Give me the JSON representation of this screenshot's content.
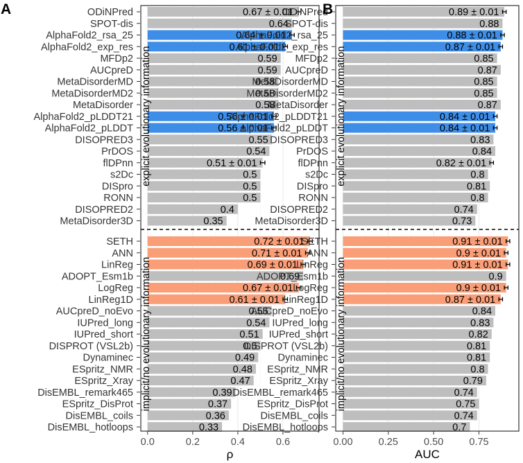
{
  "chart_data": [
    {
      "type": "bar",
      "orientation": "horizontal",
      "panel_label": "A",
      "xlabel": "ρ",
      "xlim": [
        -0.03,
        0.76
      ],
      "xticks": [
        0.0,
        0.2,
        0.4,
        0.6
      ],
      "xtick_labels": [
        "0.0",
        "0.2",
        "0.4",
        "0.6"
      ],
      "grid": true,
      "groups": [
        {
          "label": "explicit evolutionary information",
          "rows": [
            {
              "name": "ODiNPred",
              "value": 0.67,
              "err": 0.01,
              "label": "0.67 ± 0.01",
              "color": "#BEBEBE"
            },
            {
              "name": "SPOT-dis",
              "value": 0.64,
              "err": null,
              "label": "0.64",
              "color": "#BEBEBE"
            },
            {
              "name": "AlphaFold2_rsa_25",
              "value": 0.64,
              "err": 0.01,
              "label": "0.64 ± 0.01",
              "color": "#3E8EE8"
            },
            {
              "name": "AlphaFold2_exp_res",
              "value": 0.61,
              "err": 0.01,
              "label": "0.61 ± 0.01",
              "color": "#3E8EE8"
            },
            {
              "name": "MFDp2",
              "value": 0.59,
              "err": null,
              "label": "0.59",
              "color": "#BEBEBE"
            },
            {
              "name": "AUCpreD",
              "value": 0.59,
              "err": null,
              "label": "0.59",
              "color": "#BEBEBE"
            },
            {
              "name": "MetaDisorderMD",
              "value": 0.58,
              "err": null,
              "label": "0.58",
              "color": "#BEBEBE"
            },
            {
              "name": "MetaDisorderMD2",
              "value": 0.58,
              "err": null,
              "label": "0.58",
              "color": "#BEBEBE"
            },
            {
              "name": "MetaDisorder",
              "value": 0.58,
              "err": null,
              "label": "0.58",
              "color": "#BEBEBE"
            },
            {
              "name": "AlphaFold2_pLDDT21",
              "value": 0.56,
              "err": 0.01,
              "label": "0.56 ± 0.01",
              "color": "#3E8EE8"
            },
            {
              "name": "AlphaFold2_pLDDT",
              "value": 0.56,
              "err": 0.01,
              "label": "0.56 ± 0.01",
              "color": "#3E8EE8"
            },
            {
              "name": "DISOPRED3",
              "value": 0.55,
              "err": null,
              "label": "0.55",
              "color": "#BEBEBE"
            },
            {
              "name": "PrDOS",
              "value": 0.54,
              "err": null,
              "label": "0.54",
              "color": "#BEBEBE"
            },
            {
              "name": "flDPnn",
              "value": 0.51,
              "err": 0.01,
              "label": "0.51 ± 0.01",
              "color": "#BEBEBE"
            },
            {
              "name": "s2Dc",
              "value": 0.5,
              "err": null,
              "label": "0.5",
              "color": "#BEBEBE"
            },
            {
              "name": "DISpro",
              "value": 0.5,
              "err": null,
              "label": "0.5",
              "color": "#BEBEBE"
            },
            {
              "name": "RONN",
              "value": 0.5,
              "err": null,
              "label": "0.5",
              "color": "#BEBEBE"
            },
            {
              "name": "DISOPRED2",
              "value": 0.4,
              "err": null,
              "label": "0.4",
              "color": "#BEBEBE"
            },
            {
              "name": "MetaDisorder3D",
              "value": 0.35,
              "err": null,
              "label": "0.35",
              "color": "#BEBEBE"
            }
          ]
        },
        {
          "label": "implicit/no evolutionary information",
          "rows": [
            {
              "name": "SETH",
              "value": 0.72,
              "err": 0.01,
              "label": "0.72 ± 0.01",
              "color": "#FA9E78"
            },
            {
              "name": "ANN",
              "value": 0.71,
              "err": 0.01,
              "label": "0.71 ± 0.01",
              "color": "#FA9E78"
            },
            {
              "name": "LinReg",
              "value": 0.69,
              "err": 0.01,
              "label": "0.69 ± 0.01",
              "color": "#FA9E78"
            },
            {
              "name": "ADOPT_Esm1b",
              "value": 0.69,
              "err": null,
              "label": "0.69",
              "color": "#BEBEBE"
            },
            {
              "name": "LogReg",
              "value": 0.67,
              "err": 0.01,
              "label": "0.67 ± 0.01",
              "color": "#FA9E78"
            },
            {
              "name": "LinReg1D",
              "value": 0.61,
              "err": 0.01,
              "label": "0.61 ± 0.01",
              "color": "#FA9E78"
            },
            {
              "name": "AUCpreD_noEvo",
              "value": 0.55,
              "err": null,
              "label": "0.55",
              "color": "#BEBEBE"
            },
            {
              "name": "IUPred_long",
              "value": 0.54,
              "err": null,
              "label": "0.54",
              "color": "#BEBEBE"
            },
            {
              "name": "IUPred_short",
              "value": 0.51,
              "err": null,
              "label": "0.51",
              "color": "#BEBEBE"
            },
            {
              "name": "DISPROT (VSL2b)",
              "value": 0.5,
              "err": null,
              "label": "0.5",
              "color": "#BEBEBE"
            },
            {
              "name": "Dynaminec",
              "value": 0.49,
              "err": null,
              "label": "0.49",
              "color": "#BEBEBE"
            },
            {
              "name": "ESpritz_NMR",
              "value": 0.48,
              "err": null,
              "label": "0.48",
              "color": "#BEBEBE"
            },
            {
              "name": "ESpritz_Xray",
              "value": 0.47,
              "err": null,
              "label": "0.47",
              "color": "#BEBEBE"
            },
            {
              "name": "DisEMBL_remark465",
              "value": 0.39,
              "err": null,
              "label": "0.39",
              "color": "#BEBEBE"
            },
            {
              "name": "ESpritz_DisProt",
              "value": 0.37,
              "err": null,
              "label": "0.37",
              "color": "#BEBEBE"
            },
            {
              "name": "DisEMBL_coils",
              "value": 0.36,
              "err": null,
              "label": "0.36",
              "color": "#BEBEBE"
            },
            {
              "name": "DisEMBL_hotloops",
              "value": 0.33,
              "err": null,
              "label": "0.33",
              "color": "#BEBEBE"
            }
          ]
        }
      ]
    },
    {
      "type": "bar",
      "orientation": "horizontal",
      "panel_label": "B",
      "xlabel": "AUC",
      "xlim": [
        -0.04,
        0.97
      ],
      "xticks": [
        0.0,
        0.25,
        0.5,
        0.75
      ],
      "xtick_labels": [
        "0.00",
        "0.25",
        "0.50",
        "0.75"
      ],
      "grid": true,
      "groups": [
        {
          "label": "explicit evolutionary information",
          "rows": [
            {
              "name": "ODiNPred",
              "value": 0.89,
              "err": 0.01,
              "label": "0.89 ± 0.01",
              "color": "#BEBEBE"
            },
            {
              "name": "SPOT-dis",
              "value": 0.88,
              "err": null,
              "label": "0.88",
              "color": "#BEBEBE"
            },
            {
              "name": "AlphaFold2_rsa_25",
              "value": 0.88,
              "err": 0.01,
              "label": "0.88 ± 0.01",
              "color": "#3E8EE8"
            },
            {
              "name": "AlphaFold2_exp_res",
              "value": 0.87,
              "err": 0.01,
              "label": "0.87 ± 0.01",
              "color": "#3E8EE8"
            },
            {
              "name": "MFDp2",
              "value": 0.85,
              "err": null,
              "label": "0.85",
              "color": "#BEBEBE"
            },
            {
              "name": "AUCpreD",
              "value": 0.87,
              "err": null,
              "label": "0.87",
              "color": "#BEBEBE"
            },
            {
              "name": "MetaDisorderMD",
              "value": 0.85,
              "err": null,
              "label": "0.85",
              "color": "#BEBEBE"
            },
            {
              "name": "MetaDisorderMD2",
              "value": 0.85,
              "err": null,
              "label": "0.85",
              "color": "#BEBEBE"
            },
            {
              "name": "MetaDisorder",
              "value": 0.87,
              "err": null,
              "label": "0.87",
              "color": "#BEBEBE"
            },
            {
              "name": "AlphaFold2_pLDDT21",
              "value": 0.84,
              "err": 0.01,
              "label": "0.84 ± 0.01",
              "color": "#3E8EE8"
            },
            {
              "name": "AlphaFold2_pLDDT",
              "value": 0.84,
              "err": 0.01,
              "label": "0.84 ± 0.01",
              "color": "#3E8EE8"
            },
            {
              "name": "DISOPRED3",
              "value": 0.83,
              "err": null,
              "label": "0.83",
              "color": "#BEBEBE"
            },
            {
              "name": "PrDOS",
              "value": 0.84,
              "err": null,
              "label": "0.84",
              "color": "#BEBEBE"
            },
            {
              "name": "flDPnn",
              "value": 0.82,
              "err": 0.01,
              "label": "0.82 ± 0.01",
              "color": "#BEBEBE"
            },
            {
              "name": "s2Dc",
              "value": 0.8,
              "err": null,
              "label": "0.8",
              "color": "#BEBEBE"
            },
            {
              "name": "DISpro",
              "value": 0.81,
              "err": null,
              "label": "0.81",
              "color": "#BEBEBE"
            },
            {
              "name": "RONN",
              "value": 0.8,
              "err": null,
              "label": "0.8",
              "color": "#BEBEBE"
            },
            {
              "name": "DISOPRED2",
              "value": 0.74,
              "err": null,
              "label": "0.74",
              "color": "#BEBEBE"
            },
            {
              "name": "MetaDisorder3D",
              "value": 0.73,
              "err": null,
              "label": "0.73",
              "color": "#BEBEBE"
            }
          ]
        },
        {
          "label": "implicit/no evolutionary information",
          "rows": [
            {
              "name": "SETH",
              "value": 0.91,
              "err": 0.01,
              "label": "0.91 ± 0.01",
              "color": "#FA9E78"
            },
            {
              "name": "ANN",
              "value": 0.9,
              "err": 0.01,
              "label": "0.9 ± 0.01",
              "color": "#FA9E78"
            },
            {
              "name": "LinReg",
              "value": 0.91,
              "err": 0.01,
              "label": "0.91 ± 0.01",
              "color": "#FA9E78"
            },
            {
              "name": "ADOPT_Esm1b",
              "value": 0.9,
              "err": null,
              "label": "0.9",
              "color": "#BEBEBE"
            },
            {
              "name": "LogReg",
              "value": 0.9,
              "err": 0.01,
              "label": "0.9 ± 0.01",
              "color": "#FA9E78"
            },
            {
              "name": "LinReg1D",
              "value": 0.87,
              "err": 0.01,
              "label": "0.87 ± 0.01",
              "color": "#FA9E78"
            },
            {
              "name": "AUCpreD_noEvo",
              "value": 0.84,
              "err": null,
              "label": "0.84",
              "color": "#BEBEBE"
            },
            {
              "name": "IUPred_long",
              "value": 0.83,
              "err": null,
              "label": "0.83",
              "color": "#BEBEBE"
            },
            {
              "name": "IUPred_short",
              "value": 0.82,
              "err": null,
              "label": "0.82",
              "color": "#BEBEBE"
            },
            {
              "name": "DISPROT (VSL2b)",
              "value": 0.81,
              "err": null,
              "label": "0.81",
              "color": "#BEBEBE"
            },
            {
              "name": "Dynaminec",
              "value": 0.81,
              "err": null,
              "label": "0.81",
              "color": "#BEBEBE"
            },
            {
              "name": "ESpritz_NMR",
              "value": 0.8,
              "err": null,
              "label": "0.8",
              "color": "#BEBEBE"
            },
            {
              "name": "ESpritz_Xray",
              "value": 0.79,
              "err": null,
              "label": "0.79",
              "color": "#BEBEBE"
            },
            {
              "name": "DisEMBL_remark465",
              "value": 0.74,
              "err": null,
              "label": "0.74",
              "color": "#BEBEBE"
            },
            {
              "name": "ESpritz_DisProt",
              "value": 0.75,
              "err": null,
              "label": "0.75",
              "color": "#BEBEBE"
            },
            {
              "name": "DisEMBL_coils",
              "value": 0.74,
              "err": null,
              "label": "0.74",
              "color": "#BEBEBE"
            },
            {
              "name": "DisEMBL_hotloops",
              "value": 0.7,
              "err": null,
              "label": "0.7",
              "color": "#BEBEBE"
            }
          ]
        }
      ]
    }
  ]
}
